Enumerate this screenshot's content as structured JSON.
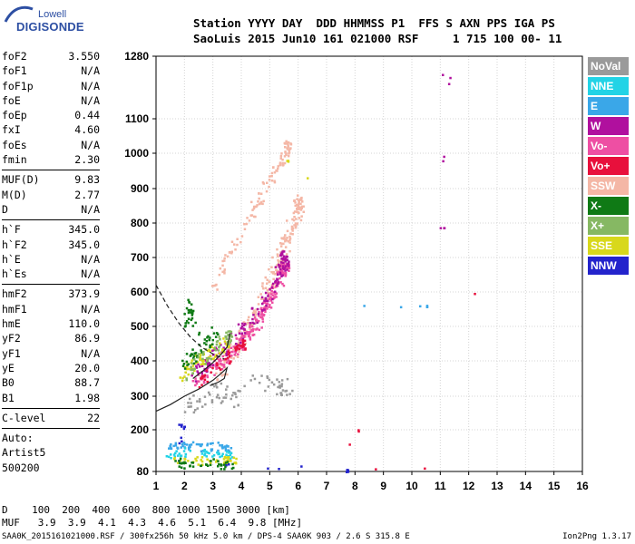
{
  "logo": {
    "line1": "Lowell",
    "line2": "DIGISONDE"
  },
  "header": {
    "line1": "Station YYYY DAY  DDD HHMMSS P1  FFS S AXN PPS IGA PS",
    "line2": "SaoLuis 2015 Jun10 161 021000 RSF     1 715 100 00- 11"
  },
  "params_group1": [
    {
      "name": "foF2",
      "value": "3.550"
    },
    {
      "name": "foF1",
      "value": "N/A"
    },
    {
      "name": "foF1p",
      "value": "N/A"
    },
    {
      "name": "foE",
      "value": "N/A"
    },
    {
      "name": "foEp",
      "value": "0.44"
    },
    {
      "name": "fxI",
      "value": "4.60"
    },
    {
      "name": "foEs",
      "value": "N/A"
    },
    {
      "name": "fmin",
      "value": "2.30"
    }
  ],
  "params_group2": [
    {
      "name": "MUF(D)",
      "value": "9.83"
    },
    {
      "name": "M(D)",
      "value": "2.77"
    },
    {
      "name": "D",
      "value": "N/A"
    }
  ],
  "params_group3": [
    {
      "name": "h`F",
      "value": "345.0"
    },
    {
      "name": "h`F2",
      "value": "345.0"
    },
    {
      "name": "h`E",
      "value": "N/A"
    },
    {
      "name": "h`Es",
      "value": "N/A"
    }
  ],
  "params_group4": [
    {
      "name": "hmF2",
      "value": "373.9"
    },
    {
      "name": "hmF1",
      "value": "N/A"
    },
    {
      "name": "hmE",
      "value": "110.0"
    },
    {
      "name": "yF2",
      "value": "86.9"
    },
    {
      "name": "yF1",
      "value": "N/A"
    },
    {
      "name": "yE",
      "value": "20.0"
    },
    {
      "name": "B0",
      "value": "88.7"
    },
    {
      "name": "B1",
      "value": "1.98"
    }
  ],
  "params_group5": [
    {
      "name": "C-level",
      "value": "22"
    }
  ],
  "auto": {
    "line1": "Auto:",
    "line2": "Artist5",
    "line3": "500200"
  },
  "legend": [
    {
      "label": "NoVal",
      "color": "#9a9a9a"
    },
    {
      "label": "NNE",
      "color": "#22d3e6"
    },
    {
      "label": "E",
      "color": "#3aa7e8"
    },
    {
      "label": "W",
      "color": "#b0109e"
    },
    {
      "label": "Vo-",
      "color": "#ee4fa3"
    },
    {
      "label": "Vo+",
      "color": "#e8103c"
    },
    {
      "label": "SSW",
      "color": "#f4b7a6"
    },
    {
      "label": "X-",
      "color": "#0f7a15"
    },
    {
      "label": "X+",
      "color": "#86b863"
    },
    {
      "label": "SSE",
      "color": "#d8d81b"
    },
    {
      "label": "NNW",
      "color": "#2323cc"
    }
  ],
  "footer": {
    "d_line": "D    100  200  400  600  800 1000 1500 3000 [km]",
    "muf_line": "MUF   3.9  3.9  4.1  4.3  4.6  5.1  6.4  9.8 [MHz]",
    "file_line": "SAA0K_2015161021000.RSF / 300fx256h 50 kHz 5.0 km / DPS-4 SAA0K 903 / 2.6 S 315.8 E",
    "credit": "Ion2Png 1.3.17"
  },
  "chart_data": {
    "type": "scatter",
    "xlim": [
      1,
      16
    ],
    "ylim": [
      80,
      1280
    ],
    "x_ticks": [
      1,
      2,
      3,
      4,
      5,
      6,
      7,
      8,
      9,
      10,
      11,
      12,
      13,
      14,
      15,
      16
    ],
    "y_ticks": [
      80,
      200,
      300,
      400,
      500,
      600,
      700,
      800,
      900,
      1000,
      1100,
      1280
    ],
    "grid": true,
    "clusters": [
      {
        "color": "#f4b7a6",
        "points": [
          [
            3.2,
            360
          ],
          [
            3.6,
            420
          ],
          [
            4.0,
            470
          ],
          [
            4.4,
            530
          ],
          [
            4.7,
            580
          ],
          [
            5.0,
            640
          ],
          [
            5.3,
            700
          ],
          [
            5.6,
            760
          ],
          [
            5.9,
            820
          ],
          [
            6.0,
            860
          ]
        ],
        "spread": 0.18,
        "hspread": 25,
        "count": 220
      },
      {
        "color": "#f4b7a6",
        "points": [
          [
            3.0,
            600
          ],
          [
            3.5,
            700
          ],
          [
            4.0,
            780
          ],
          [
            4.5,
            860
          ],
          [
            5.0,
            930
          ],
          [
            5.4,
            980
          ],
          [
            5.6,
            1020
          ]
        ],
        "spread": 0.12,
        "hspread": 18,
        "count": 110
      },
      {
        "color": "#ee4fa3",
        "points": [
          [
            2.2,
            330
          ],
          [
            2.8,
            370
          ],
          [
            3.3,
            400
          ],
          [
            3.8,
            440
          ],
          [
            4.2,
            480
          ],
          [
            4.6,
            520
          ],
          [
            4.9,
            570
          ],
          [
            5.2,
            620
          ],
          [
            5.5,
            670
          ]
        ],
        "spread": 0.15,
        "hspread": 18,
        "count": 200
      },
      {
        "color": "#b0109e",
        "points": [
          [
            2.3,
            360
          ],
          [
            2.8,
            400
          ],
          [
            3.2,
            430
          ],
          [
            3.8,
            470
          ],
          [
            4.3,
            520
          ],
          [
            4.8,
            580
          ],
          [
            5.2,
            640
          ],
          [
            5.5,
            700
          ]
        ],
        "spread": 0.14,
        "hspread": 22,
        "count": 150
      },
      {
        "color": "#e8103c",
        "points": [
          [
            2.4,
            340
          ],
          [
            3.0,
            380
          ],
          [
            3.5,
            410
          ],
          [
            4.0,
            450
          ]
        ],
        "spread": 0.12,
        "hspread": 14,
        "count": 45
      },
      {
        "color": "#d8d81b",
        "points": [
          [
            1.8,
            360
          ],
          [
            2.2,
            390
          ],
          [
            2.6,
            410
          ],
          [
            3.0,
            430
          ],
          [
            3.4,
            450
          ]
        ],
        "spread": 0.15,
        "hspread": 20,
        "count": 60
      },
      {
        "color": "#0f7a15",
        "points": [
          [
            1.9,
            380
          ],
          [
            2.3,
            420
          ],
          [
            2.7,
            450
          ],
          [
            3.1,
            470
          ],
          [
            2.0,
            520
          ],
          [
            2.2,
            560
          ]
        ],
        "spread": 0.12,
        "hspread": 22,
        "count": 70
      },
      {
        "color": "#86b863",
        "points": [
          [
            2.0,
            350
          ],
          [
            2.5,
            400
          ],
          [
            3.0,
            440
          ],
          [
            3.5,
            470
          ]
        ],
        "spread": 0.14,
        "hspread": 20,
        "count": 50
      },
      {
        "color": "#3aa7e8",
        "points": [
          [
            1.5,
            150
          ],
          [
            2.0,
            160
          ],
          [
            2.5,
            150
          ],
          [
            3.0,
            155
          ],
          [
            3.5,
            150
          ]
        ],
        "spread": 0.25,
        "hspread": 12,
        "count": 60
      },
      {
        "color": "#22d3e6",
        "points": [
          [
            1.5,
            130
          ],
          [
            2.1,
            140
          ],
          [
            2.7,
            135
          ],
          [
            3.4,
            130
          ]
        ],
        "spread": 0.25,
        "hspread": 10,
        "count": 45
      },
      {
        "color": "#d8d81b",
        "points": [
          [
            1.6,
            120
          ],
          [
            2.3,
            110
          ],
          [
            3.0,
            120
          ],
          [
            3.6,
            115
          ]
        ],
        "spread": 0.25,
        "hspread": 10,
        "count": 45
      },
      {
        "color": "#2323cc",
        "points": [
          [
            1.8,
            220
          ],
          [
            2.0,
            215
          ],
          [
            1.7,
            110
          ],
          [
            7.7,
            85
          ]
        ],
        "spread": 0.06,
        "hspread": 6,
        "count": 22
      },
      {
        "color": "#9a9a9a",
        "points": [
          [
            2.0,
            260
          ],
          [
            2.6,
            300
          ],
          [
            3.2,
            320
          ],
          [
            3.6,
            280
          ],
          [
            4.5,
            350
          ],
          [
            5.5,
            330
          ]
        ],
        "spread": 0.3,
        "hspread": 25,
        "count": 80
      },
      {
        "color": "#0f7a15",
        "points": [
          [
            1.6,
            120
          ],
          [
            2.0,
            100
          ],
          [
            2.5,
            100
          ],
          [
            3.0,
            110
          ],
          [
            3.5,
            95
          ]
        ],
        "spread": 0.25,
        "hspread": 10,
        "count": 40
      },
      {
        "color": "#b0109e",
        "points": [
          [
            10.8,
            1240
          ],
          [
            11.3,
            1220
          ],
          [
            10.9,
            790
          ],
          [
            11.1,
            790
          ]
        ],
        "spread": 0.02,
        "hspread": 2,
        "count": 8
      },
      {
        "color": "#e8103c",
        "points": [
          [
            12.2,
            620
          ],
          [
            11.5,
            90
          ],
          [
            7.2,
            85
          ],
          [
            8.1,
            200
          ]
        ],
        "spread": 0.02,
        "hspread": 3,
        "count": 6
      },
      {
        "color": "#3aa7e8",
        "points": [
          [
            6.2,
            300
          ],
          [
            6.8,
            560
          ],
          [
            10.5,
            560
          ]
        ],
        "spread": 0.02,
        "hspread": 3,
        "count": 6
      },
      {
        "color": "#d8d81b",
        "points": [
          [
            12.3,
            530
          ],
          [
            5.6,
            980
          ]
        ],
        "spread": 0.02,
        "hspread": 3,
        "count": 4
      }
    ],
    "curves": [
      {
        "style": "dashed",
        "color": "#222222",
        "points": [
          [
            1.0,
            620
          ],
          [
            1.4,
            560
          ],
          [
            1.8,
            510
          ],
          [
            2.2,
            470
          ],
          [
            2.6,
            440
          ],
          [
            3.0,
            420
          ],
          [
            3.4,
            405
          ]
        ]
      },
      {
        "style": "solid",
        "color": "#222222",
        "points": [
          [
            1.0,
            255
          ],
          [
            1.5,
            275
          ],
          [
            2.0,
            300
          ],
          [
            2.5,
            320
          ],
          [
            3.0,
            345
          ],
          [
            3.3,
            365
          ],
          [
            3.5,
            380
          ],
          [
            3.4,
            350
          ],
          [
            3.2,
            340
          ],
          [
            2.9,
            330
          ]
        ]
      },
      {
        "style": "solid",
        "color": "#222222",
        "points": [
          [
            2.3,
            350
          ],
          [
            2.7,
            375
          ],
          [
            3.0,
            395
          ],
          [
            3.3,
            420
          ],
          [
            3.5,
            440
          ],
          [
            3.6,
            480
          ]
        ]
      }
    ]
  }
}
